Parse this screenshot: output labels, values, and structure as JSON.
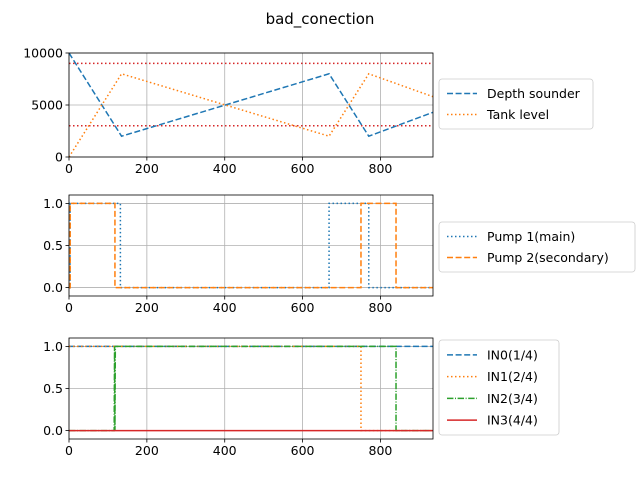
{
  "title": "bad_conection",
  "chart_data": [
    {
      "type": "line",
      "xlim": [
        0,
        935
      ],
      "ylim": [
        0,
        10000
      ],
      "xticks": [
        0,
        200,
        400,
        600,
        800
      ],
      "yticks": [
        0,
        5000,
        10000
      ],
      "grid": true,
      "legend_placement": "right",
      "series": [
        {
          "name": "Depth sounder",
          "style": "dashed",
          "color": "#1f77b4",
          "x": [
            0,
            135,
            668,
            770,
            935
          ],
          "y": [
            10000,
            2000,
            8000,
            2000,
            4300
          ]
        },
        {
          "name": "Tank level",
          "style": "dotted",
          "color": "#ff7f0e",
          "x": [
            0,
            135,
            668,
            770,
            935
          ],
          "y": [
            0,
            8000,
            2000,
            8000,
            5800
          ]
        }
      ],
      "hlines": [
        {
          "y": 9000,
          "style": "dotted",
          "color": "#d62728"
        },
        {
          "y": 3000,
          "style": "dotted",
          "color": "#d62728"
        }
      ]
    },
    {
      "type": "line",
      "xlim": [
        0,
        935
      ],
      "ylim": [
        -0.1,
        1.1
      ],
      "xticks": [
        0,
        200,
        400,
        600,
        800
      ],
      "yticks": [
        0.0,
        0.5,
        1.0
      ],
      "ytick_labels": [
        "0.0",
        "0.5",
        "1.0"
      ],
      "grid": true,
      "legend_placement": "right",
      "series": [
        {
          "name": "Pump 1(main)",
          "style": "dotted",
          "color": "#1f77b4",
          "x": [
            0,
            3,
            3,
            132,
            132,
            668,
            668,
            770,
            770,
            935
          ],
          "y": [
            0,
            0,
            1,
            1,
            0,
            0,
            1,
            1,
            0,
            0
          ]
        },
        {
          "name": "Pump 2(secondary)",
          "style": "dashed",
          "color": "#ff7f0e",
          "x": [
            0,
            3,
            3,
            118,
            118,
            750,
            750,
            840,
            840,
            935
          ],
          "y": [
            0,
            0,
            1,
            1,
            0,
            0,
            1,
            1,
            0,
            0
          ]
        }
      ]
    },
    {
      "type": "line",
      "xlim": [
        0,
        935
      ],
      "ylim": [
        -0.1,
        1.1
      ],
      "xticks": [
        0,
        200,
        400,
        600,
        800
      ],
      "yticks": [
        0.0,
        0.5,
        1.0
      ],
      "ytick_labels": [
        "0.0",
        "0.5",
        "1.0"
      ],
      "grid": true,
      "legend_placement": "right",
      "series": [
        {
          "name": "IN0(1/4)",
          "style": "dashed",
          "color": "#1f77b4",
          "x": [
            0,
            935
          ],
          "y": [
            1,
            1
          ]
        },
        {
          "name": "IN1(2/4)",
          "style": "dotted",
          "color": "#ff7f0e",
          "x": [
            0,
            750,
            750,
            935
          ],
          "y": [
            1,
            1,
            0,
            0
          ]
        },
        {
          "name": "IN2(3/4)",
          "style": "dashdot",
          "color": "#2ca02c",
          "x": [
            0,
            116,
            117,
            118,
            119,
            840,
            840,
            935
          ],
          "y": [
            0,
            0,
            1,
            0,
            1,
            1,
            0,
            0
          ]
        },
        {
          "name": "IN3(4/4)",
          "style": "solid",
          "color": "#d62728",
          "x": [
            0,
            935
          ],
          "y": [
            0,
            0
          ]
        }
      ]
    }
  ]
}
